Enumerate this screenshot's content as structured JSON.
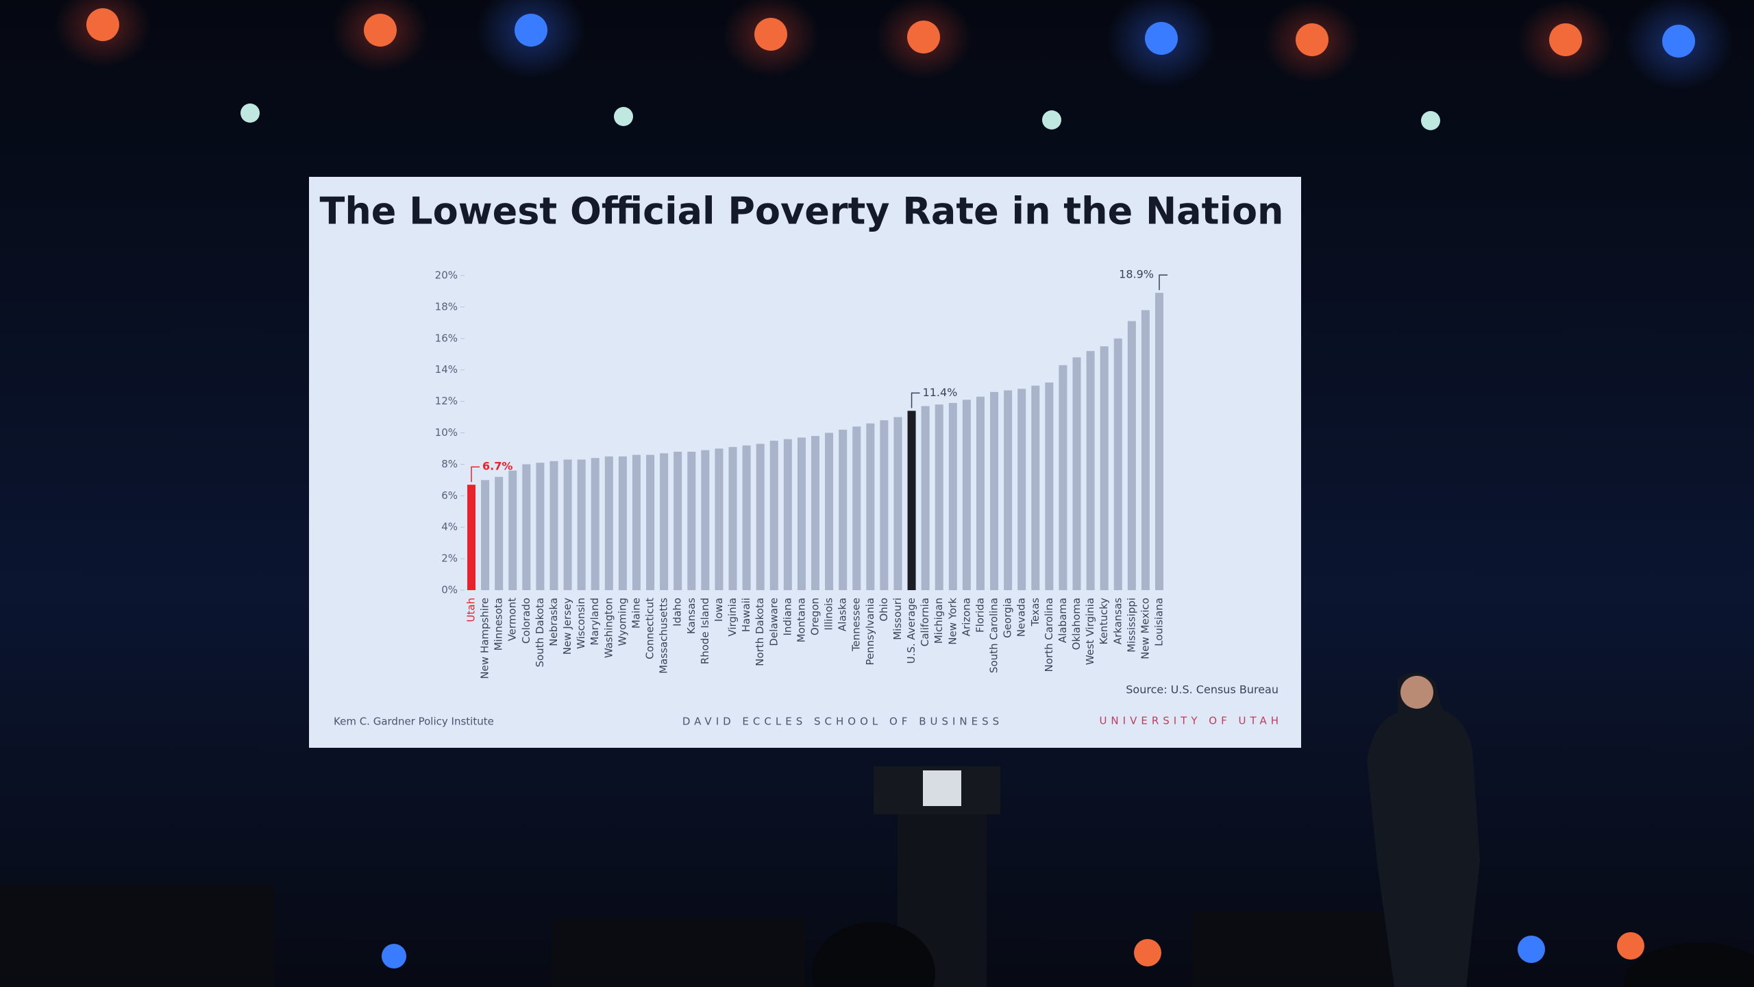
{
  "chart_data": {
    "type": "bar",
    "title": "The Lowest Official Poverty Rate in the Nation",
    "categories": [
      "Utah",
      "New Hampshire",
      "Minnesota",
      "Vermont",
      "Colorado",
      "South Dakota",
      "Nebraska",
      "New Jersey",
      "Wisconsin",
      "Maryland",
      "Washington",
      "Wyoming",
      "Maine",
      "Connecticut",
      "Massachusetts",
      "Idaho",
      "Kansas",
      "Rhode Island",
      "Iowa",
      "Virginia",
      "Hawaii",
      "North Dakota",
      "Delaware",
      "Indiana",
      "Montana",
      "Oregon",
      "Illinois",
      "Alaska",
      "Tennessee",
      "Pennsylvania",
      "Ohio",
      "Missouri",
      "U.S. Average",
      "California",
      "Michigan",
      "New York",
      "Arizona",
      "Florida",
      "South Carolina",
      "Georgia",
      "Nevada",
      "Texas",
      "North Carolina",
      "Alabama",
      "Oklahoma",
      "West Virginia",
      "Kentucky",
      "Arkansas",
      "Mississippi",
      "New Mexico",
      "Louisiana"
    ],
    "values": [
      6.7,
      7.0,
      7.2,
      7.6,
      8.0,
      8.1,
      8.2,
      8.3,
      8.3,
      8.4,
      8.5,
      8.5,
      8.6,
      8.6,
      8.7,
      8.8,
      8.8,
      8.9,
      9.0,
      9.1,
      9.2,
      9.3,
      9.5,
      9.6,
      9.7,
      9.8,
      10.0,
      10.2,
      10.4,
      10.6,
      10.8,
      11.0,
      11.4,
      11.7,
      11.8,
      11.9,
      12.1,
      12.3,
      12.6,
      12.7,
      12.8,
      13.0,
      13.2,
      14.3,
      14.8,
      15.2,
      15.5,
      16.0,
      17.1,
      17.8,
      18.9
    ],
    "value_labels": [
      "6.7%",
      null,
      null,
      null,
      null,
      null,
      null,
      null,
      null,
      null,
      null,
      null,
      null,
      null,
      null,
      null,
      null,
      null,
      null,
      null,
      null,
      null,
      null,
      null,
      null,
      null,
      null,
      null,
      null,
      null,
      null,
      null,
      "11.4%",
      null,
      null,
      null,
      null,
      null,
      null,
      null,
      null,
      null,
      null,
      null,
      null,
      null,
      null,
      null,
      null,
      null,
      "18.9%"
    ],
    "colors": [
      "#e8232c",
      "#a9b3c9",
      "#a9b3c9",
      "#a9b3c9",
      "#a9b3c9",
      "#a9b3c9",
      "#a9b3c9",
      "#a9b3c9",
      "#a9b3c9",
      "#a9b3c9",
      "#a9b3c9",
      "#a9b3c9",
      "#a9b3c9",
      "#a9b3c9",
      "#a9b3c9",
      "#a9b3c9",
      "#a9b3c9",
      "#a9b3c9",
      "#a9b3c9",
      "#a9b3c9",
      "#a9b3c9",
      "#a9b3c9",
      "#a9b3c9",
      "#a9b3c9",
      "#a9b3c9",
      "#a9b3c9",
      "#a9b3c9",
      "#a9b3c9",
      "#a9b3c9",
      "#a9b3c9",
      "#a9b3c9",
      "#a9b3c9",
      "#1b1d22",
      "#a9b3c9",
      "#a9b3c9",
      "#a9b3c9",
      "#a9b3c9",
      "#a9b3c9",
      "#a9b3c9",
      "#a9b3c9",
      "#a9b3c9",
      "#a9b3c9",
      "#a9b3c9",
      "#a9b3c9",
      "#a9b3c9",
      "#a9b3c9",
      "#a9b3c9",
      "#a9b3c9",
      "#a9b3c9",
      "#a9b3c9",
      "#a9b3c9"
    ],
    "label_colors": [
      "#e8232c",
      "#3a4258"
    ],
    "ylim": [
      0,
      20
    ],
    "yticks": [
      {
        "value": 0,
        "label": "0%"
      },
      {
        "value": 2,
        "label": "2%"
      },
      {
        "value": 4,
        "label": "4%"
      },
      {
        "value": 6,
        "label": "6%"
      },
      {
        "value": 8,
        "label": "8%"
      },
      {
        "value": 10,
        "label": "10%"
      },
      {
        "value": 12,
        "label": "12%"
      },
      {
        "value": 14,
        "label": "14%"
      },
      {
        "value": 16,
        "label": "16%"
      },
      {
        "value": 18,
        "label": "18%"
      },
      {
        "value": 20,
        "label": "20%"
      }
    ],
    "grid": false,
    "source": "Source: U.S. Census Bureau",
    "footer_left": "Kem C. Gardner Policy Institute",
    "footer_center": "DAVID ECCLES SCHOOL OF BUSINESS",
    "footer_right": "UNIVERSITY OF UTAH"
  }
}
